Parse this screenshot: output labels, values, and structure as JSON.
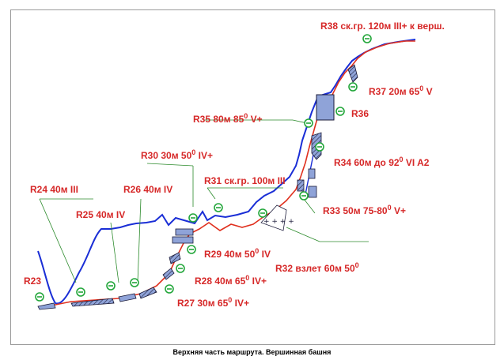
{
  "caption": "Верхняя часть маршрута. Вершинная башня",
  "labels": {
    "r38": "R38 ск.гр. 120м III+ к верш.",
    "r37": "R37 20м 65",
    "r37_unit": "V",
    "r36": "R36",
    "r35": "R35 80м 85",
    "r35_unit": "V+",
    "r34": "R34 60м до 92",
    "r34_unit": "VI A2",
    "r33": "R33 50м 75-80",
    "r33_unit": "V+",
    "r32": "R32 взлет 60м 50",
    "r31": "R31 ск.гр. 100м III",
    "r30": "R30 30м 50",
    "r30_unit": "IV+",
    "r29": "R29 40м 50",
    "r29_unit": "IV",
    "r28": "R28 40м 65",
    "r28_unit": "IV+",
    "r27": "R27 30м 65",
    "r27_unit": "IV+",
    "r26": "R26 40м IV",
    "r25": "R25 40м IV",
    "r24": "R24 40м III",
    "r23": "R23",
    "degree": "0"
  },
  "colors": {
    "label": "#d62828",
    "ridge": "#1a2ed6",
    "route": "#e0301e",
    "belay": "#22a63a",
    "pointer": "#2b8a2b",
    "feature_fill": "#8fa3d8",
    "feature_stroke": "#1b1b3a"
  },
  "icons": {
    "belay": "belay-station-icon",
    "hard_section": "hatched-section-icon",
    "snow": "snow-slope-icon"
  }
}
